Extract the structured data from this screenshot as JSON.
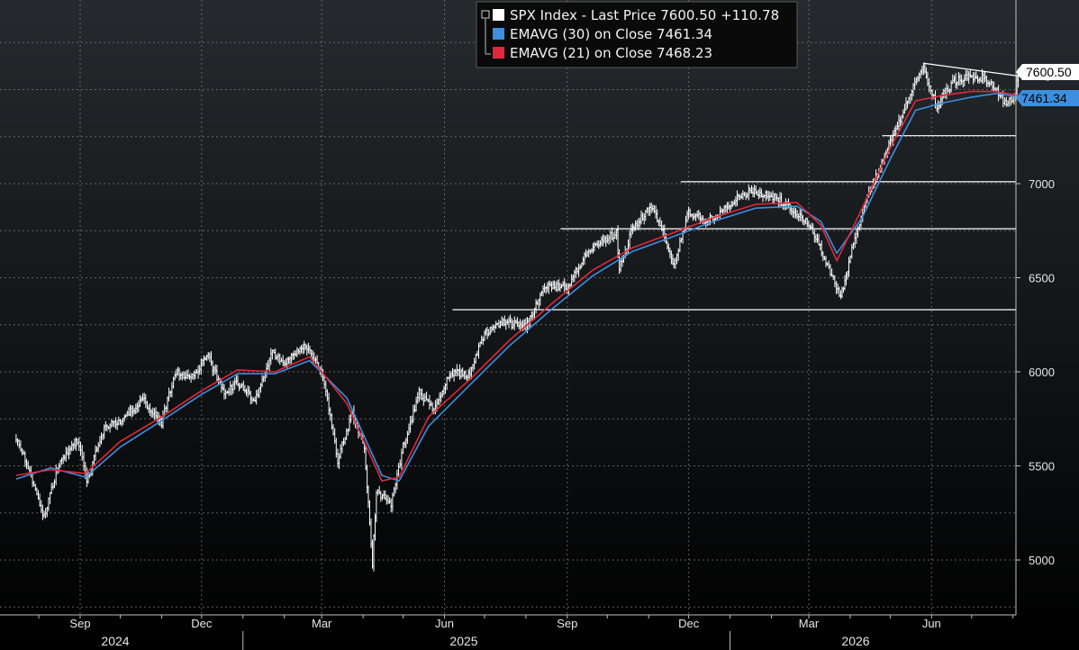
{
  "chart_data": {
    "type": "line",
    "title": "",
    "xlabel": "",
    "ylabel": "",
    "ylim": [
      4700,
      7900
    ],
    "y_ticks": [
      5000,
      5500,
      6000,
      6500,
      7000
    ],
    "x_ticks": [
      "Sep",
      "Dec",
      "Mar",
      "Jun",
      "Sep",
      "Dec",
      "Mar",
      "Jun"
    ],
    "years": [
      "2024",
      "2025",
      "2026"
    ],
    "grid": true,
    "legend_position": "top-center",
    "colors": {
      "background_top": "#262a2e",
      "background_bottom": "#000000",
      "price": "#ffffff",
      "ema30": "#3d8fe0",
      "ema21": "#e0283c",
      "grid": "#8a8a8a"
    },
    "legend": [
      {
        "label": "SPX Index - Last Price",
        "value": "7600.50",
        "change": "+110.78",
        "color": "#ffffff"
      },
      {
        "label": "EMAVG (30)  on Close",
        "value": "7461.34",
        "color": "#3d8fe0"
      },
      {
        "label": "EMAVG (21)  on Close",
        "value": "7468.23",
        "color": "#e0283c"
      }
    ],
    "last_price_tag": "7600.50",
    "ema_tag": "7461.34",
    "series": [
      {
        "name": "SPX Index - Last Price",
        "x": [
          "2024-07-15",
          "2024-07-24",
          "2024-08-05",
          "2024-08-15",
          "2024-08-30",
          "2024-09-06",
          "2024-09-19",
          "2024-10-01",
          "2024-10-18",
          "2024-11-01",
          "2024-11-11",
          "2024-11-22",
          "2024-12-06",
          "2024-12-18",
          "2024-12-27",
          "2025-01-10",
          "2025-01-23",
          "2025-01-31",
          "2025-02-19",
          "2025-03-03",
          "2025-03-13",
          "2025-03-24",
          "2025-04-02",
          "2025-04-08",
          "2025-04-11",
          "2025-04-22",
          "2025-05-01",
          "2025-05-13",
          "2025-05-23",
          "2025-06-06",
          "2025-06-19",
          "2025-07-01",
          "2025-07-15",
          "2025-08-01",
          "2025-08-15",
          "2025-09-01",
          "2025-09-15",
          "2025-10-01",
          "2025-10-08",
          "2025-10-10",
          "2025-10-20",
          "2025-11-03",
          "2025-11-14",
          "2025-11-20",
          "2025-12-01",
          "2025-12-15",
          "2026-01-02",
          "2026-01-15",
          "2026-02-02",
          "2026-02-16",
          "2026-03-02",
          "2026-03-16",
          "2026-03-25",
          "2026-03-31",
          "2026-04-08",
          "2026-04-15",
          "2026-04-30",
          "2026-05-15",
          "2026-05-26",
          "2026-05-29",
          "2026-06-05",
          "2026-06-10",
          "2026-06-18",
          "2026-06-30",
          "2026-07-10",
          "2026-07-20",
          "2026-07-27",
          "2026-08-03",
          "2026-08-05"
        ],
        "values": [
          5640,
          5500,
          5230,
          5490,
          5640,
          5420,
          5700,
          5740,
          5850,
          5730,
          6000,
          5960,
          6080,
          5880,
          5950,
          5850,
          6100,
          6050,
          6140,
          5950,
          5530,
          5780,
          5600,
          4982,
          5370,
          5290,
          5600,
          5890,
          5800,
          6000,
          5980,
          6200,
          6260,
          6240,
          6450,
          6450,
          6630,
          6710,
          6740,
          6550,
          6760,
          6880,
          6700,
          6560,
          6850,
          6800,
          6900,
          6960,
          6930,
          6870,
          6780,
          6550,
          6400,
          6580,
          6800,
          6950,
          7200,
          7450,
          7640,
          7550,
          7400,
          7480,
          7540,
          7570,
          7560,
          7500,
          7410,
          7480,
          7600.5
        ]
      },
      {
        "name": "EMAVG (30)  on Close",
        "x": [
          "2024-07-15",
          "2024-08-10",
          "2024-09-05",
          "2024-10-01",
          "2024-11-01",
          "2024-12-01",
          "2024-12-28",
          "2025-01-25",
          "2025-02-20",
          "2025-03-20",
          "2025-04-15",
          "2025-04-28",
          "2025-05-20",
          "2025-06-20",
          "2025-07-20",
          "2025-08-20",
          "2025-09-20",
          "2025-10-20",
          "2025-11-20",
          "2025-12-20",
          "2026-01-20",
          "2026-02-20",
          "2026-03-10",
          "2026-03-22",
          "2026-04-10",
          "2026-05-01",
          "2026-05-20",
          "2026-06-10",
          "2026-07-01",
          "2026-07-20",
          "2026-08-05"
        ],
        "values": [
          5430,
          5490,
          5440,
          5600,
          5740,
          5880,
          5990,
          5990,
          6060,
          5860,
          5450,
          5420,
          5710,
          5930,
          6140,
          6330,
          6510,
          6640,
          6720,
          6800,
          6870,
          6880,
          6800,
          6630,
          6820,
          7130,
          7390,
          7430,
          7460,
          7480,
          7461.34
        ]
      },
      {
        "name": "EMAVG (21)  on Close",
        "x": [
          "2024-07-15",
          "2024-08-10",
          "2024-09-05",
          "2024-10-01",
          "2024-11-01",
          "2024-12-01",
          "2024-12-28",
          "2025-01-25",
          "2025-02-20",
          "2025-03-20",
          "2025-04-15",
          "2025-04-28",
          "2025-05-20",
          "2025-06-20",
          "2025-07-20",
          "2025-08-20",
          "2025-09-20",
          "2025-10-20",
          "2025-11-20",
          "2025-12-20",
          "2026-01-20",
          "2026-02-20",
          "2026-03-10",
          "2026-03-22",
          "2026-04-10",
          "2026-05-01",
          "2026-05-20",
          "2026-06-10",
          "2026-07-01",
          "2026-07-20",
          "2026-08-05"
        ],
        "values": [
          5450,
          5480,
          5460,
          5630,
          5760,
          5900,
          6010,
          6000,
          6080,
          5830,
          5420,
          5440,
          5760,
          5960,
          6170,
          6360,
          6540,
          6660,
          6740,
          6820,
          6890,
          6900,
          6780,
          6590,
          6870,
          7190,
          7440,
          7470,
          7490,
          7490,
          7468.23
        ]
      }
    ],
    "annotations": {
      "support_levels": [
        {
          "level": 6330,
          "from": "2025-06-07"
        },
        {
          "level": 6760,
          "from": "2025-08-27"
        },
        {
          "level": 7010,
          "from": "2025-11-25"
        },
        {
          "level": 7255,
          "from": "2026-04-25"
        }
      ],
      "trendline": {
        "from": [
          "2026-05-26",
          7640
        ],
        "to": [
          "2026-08-28",
          7550
        ]
      }
    }
  }
}
